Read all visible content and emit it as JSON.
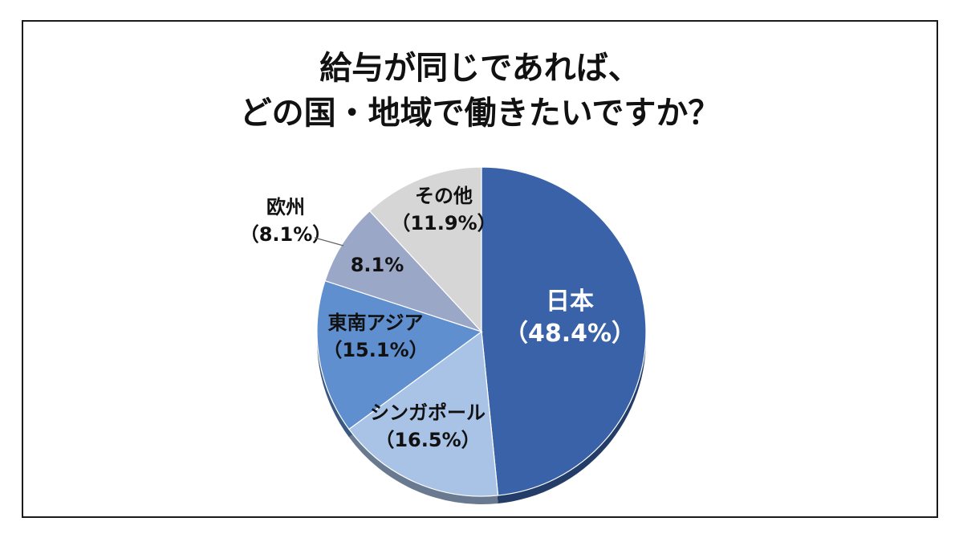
{
  "chart_data": {
    "type": "pie",
    "title_lines": [
      "給与が同じであれば、",
      "どの国・地域で働きたいですか？"
    ],
    "slices": [
      {
        "name": "日本",
        "value_label": "（48.4%）",
        "value": 48.4,
        "color": "#3a62a8"
      },
      {
        "name": "シンガポール",
        "value_label": "（16.5%）",
        "value": 16.5,
        "color": "#a9c3e6"
      },
      {
        "name": "東南アジア",
        "value_label": "（15.1%）",
        "value": 15.1,
        "color": "#5f8fcf"
      },
      {
        "name": "欧州",
        "value_label": "（8.1%）",
        "value": 8.1,
        "color": "#9ba7c7",
        "inside_label": "8.1%"
      },
      {
        "name": "その他",
        "value_label": "（11.9%）",
        "value": 11.9,
        "color": "#d6d6d6"
      }
    ],
    "start_angle_deg": 0,
    "direction": "clockwise",
    "legend": "none"
  }
}
